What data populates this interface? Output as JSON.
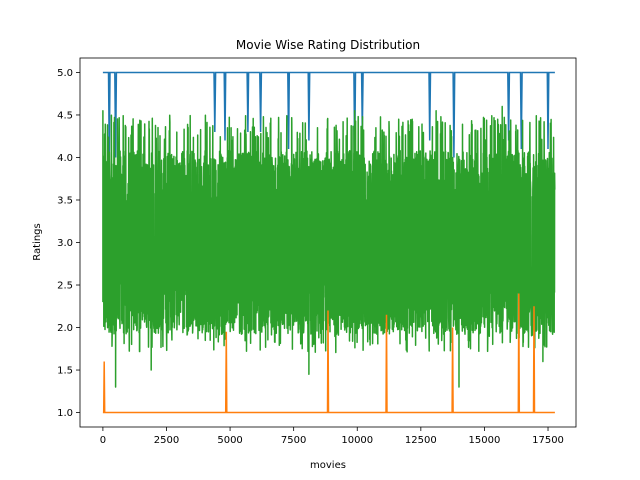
{
  "chart_data": {
    "type": "line",
    "title": "Movie Wise Rating Distribution",
    "xlabel": "movies",
    "ylabel": "Ratings",
    "xlim": [
      -900,
      18600
    ],
    "ylim": [
      0.83,
      5.17
    ],
    "x_ticks": [
      0,
      2500,
      5000,
      7500,
      10000,
      12500,
      15000,
      17500
    ],
    "x_tick_labels": [
      "0",
      "2500",
      "5000",
      "7500",
      "10000",
      "12500",
      "15000",
      "17500"
    ],
    "y_ticks": [
      1.0,
      1.5,
      2.0,
      2.5,
      3.0,
      3.5,
      4.0,
      4.5,
      5.0
    ],
    "y_tick_labels": [
      "1.0",
      "1.5",
      "2.0",
      "2.5",
      "3.0",
      "3.5",
      "4.0",
      "4.5",
      "5.0"
    ],
    "n_movies": 17770,
    "series": [
      {
        "color": "#1f77b4",
        "base": 5.0,
        "dips": [
          [
            250,
            4.0
          ],
          [
            500,
            4.0
          ],
          [
            4400,
            4.3
          ],
          [
            4800,
            4.2
          ],
          [
            5700,
            4.3
          ],
          [
            6200,
            4.3
          ],
          [
            7300,
            4.1
          ],
          [
            8100,
            4.2
          ],
          [
            9900,
            4.0
          ],
          [
            10200,
            4.3
          ],
          [
            12850,
            4.2
          ],
          [
            13800,
            4.0
          ],
          [
            15950,
            4.2
          ],
          [
            16450,
            4.1
          ],
          [
            17500,
            4.1
          ]
        ]
      },
      {
        "color": "#ff7f0e",
        "base": 1.0,
        "spikes": [
          [
            50,
            1.6
          ],
          [
            4850,
            1.95
          ],
          [
            8850,
            2.2
          ],
          [
            11150,
            2.15
          ],
          [
            13750,
            2.0
          ],
          [
            16350,
            2.4
          ],
          [
            16950,
            2.25
          ]
        ]
      },
      {
        "color": "#2ca02c",
        "typical_range": [
          1.8,
          4.2
        ],
        "extremes": [
          [
            0,
            4.55
          ],
          [
            500,
            1.3
          ],
          [
            1900,
            1.5
          ],
          [
            4900,
            4.35
          ],
          [
            8100,
            1.45
          ],
          [
            9900,
            4.55
          ],
          [
            13100,
            4.55
          ],
          [
            14000,
            1.3
          ],
          [
            15700,
            4.6
          ],
          [
            17300,
            1.6
          ]
        ]
      }
    ]
  }
}
